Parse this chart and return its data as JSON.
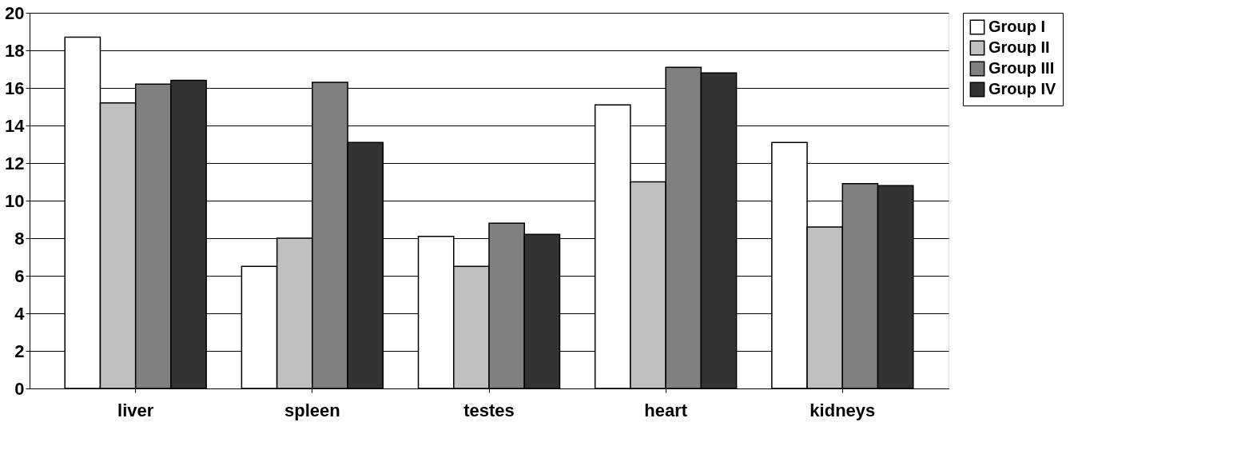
{
  "chart_data": {
    "type": "bar",
    "categories": [
      "liver",
      "spleen",
      "testes",
      "heart",
      "kidneys"
    ],
    "series": [
      {
        "name": "Group I",
        "color": "#ffffff",
        "values": [
          18.7,
          6.5,
          8.1,
          15.1,
          13.1
        ]
      },
      {
        "name": "Group II",
        "color": "#c0c0c0",
        "values": [
          15.2,
          8.0,
          6.5,
          11.0,
          8.6
        ]
      },
      {
        "name": "Group III",
        "color": "#808080",
        "values": [
          16.2,
          16.3,
          8.8,
          17.1,
          10.9
        ]
      },
      {
        "name": "Group IV",
        "color": "#333333",
        "values": [
          16.4,
          13.1,
          8.2,
          16.8,
          10.8
        ]
      }
    ],
    "ylim": [
      0,
      20
    ],
    "yticks": [
      0,
      2,
      4,
      6,
      8,
      10,
      12,
      14,
      16,
      18,
      20
    ],
    "grid": "y",
    "legend": "right"
  }
}
